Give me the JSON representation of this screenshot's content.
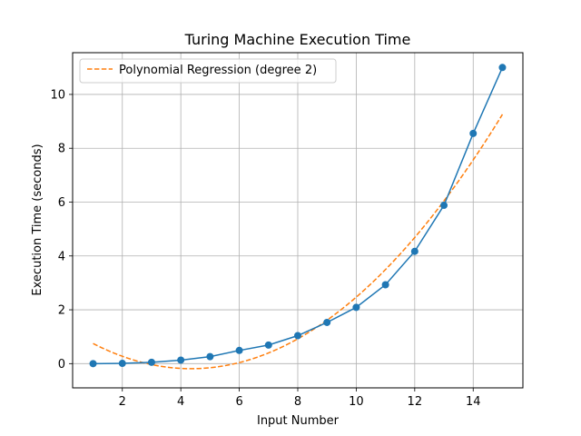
{
  "chart_data": {
    "type": "line",
    "title": "Turing Machine Execution Time",
    "xlabel": "Input Number",
    "ylabel": "Execution Time (seconds)",
    "xlim": [
      0.3,
      15.7
    ],
    "ylim": [
      -0.9,
      11.55
    ],
    "xticks": [
      2,
      4,
      6,
      8,
      10,
      12,
      14
    ],
    "yticks": [
      0,
      2,
      4,
      6,
      8,
      10
    ],
    "grid": true,
    "legend_position": "top-left",
    "series": [
      {
        "name": "Execution Time",
        "style": "line-markers",
        "color": "#1f77b4",
        "in_legend": false,
        "x": [
          1,
          2,
          3,
          4,
          5,
          6,
          7,
          8,
          9,
          10,
          11,
          12,
          13,
          14,
          15
        ],
        "y": [
          0.0,
          0.01,
          0.05,
          0.13,
          0.26,
          0.49,
          0.69,
          1.04,
          1.53,
          2.09,
          2.93,
          4.17,
          5.88,
          8.55,
          11.0
        ]
      },
      {
        "name": "Polynomial Regression (degree 2)",
        "style": "dashed",
        "color": "#ff7f0e",
        "in_legend": true,
        "coefficients": {
          "a": 0.0833,
          "b": -0.725,
          "c": 1.39
        },
        "x_range": [
          1,
          15
        ]
      }
    ]
  }
}
